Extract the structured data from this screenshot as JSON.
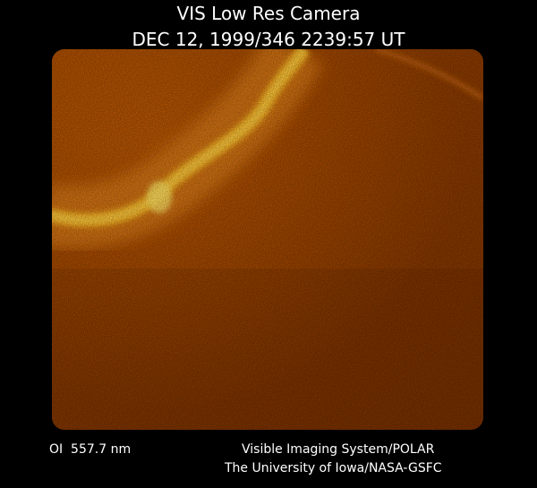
{
  "header": {
    "title": "VIS Low Res Camera",
    "timestamp": "DEC 12, 1999/346 2239:57 UT"
  },
  "footer": {
    "wavelength": "OI  557.7 nm",
    "instrument": "Visible Imaging System/POLAR",
    "institution": "The University of Iowa/NASA-GSFC"
  }
}
